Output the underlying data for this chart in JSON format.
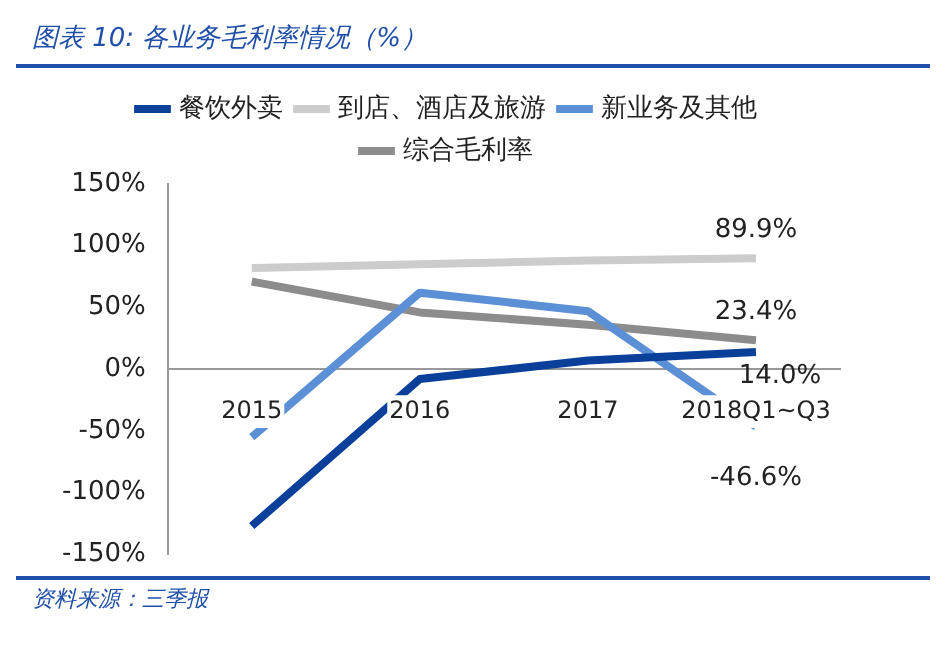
{
  "chart_data": {
    "type": "line",
    "title": "图表 10:  各业务毛利率情况（%）",
    "categories": [
      "2015",
      "2016",
      "2017",
      "2018Q1~Q3"
    ],
    "series": [
      {
        "name": "餐饮外卖",
        "color": "#0a3f9a",
        "values": [
          -127,
          -8,
          7,
          14.0
        ],
        "value_labels": [
          null,
          null,
          null,
          "14.0%"
        ]
      },
      {
        "name": "到店、酒店及旅游",
        "color": "#cccccc",
        "values": [
          82,
          85,
          88,
          89.9
        ],
        "value_labels": [
          null,
          null,
          null,
          "89.9%"
        ]
      },
      {
        "name": "新业务及其他",
        "color": "#5b8fd6",
        "values": [
          -55,
          62,
          47,
          -46.6
        ],
        "value_labels": [
          null,
          null,
          null,
          "-46.6%"
        ]
      },
      {
        "name": "综合毛利率",
        "color": "#8c8c8c",
        "values": [
          71,
          46,
          36,
          23.4
        ],
        "value_labels": [
          null,
          null,
          null,
          "23.4%"
        ]
      }
    ],
    "ylim": [
      -150,
      150
    ],
    "yticks": [
      {
        "value": -150,
        "label": "-150%"
      },
      {
        "value": -100,
        "label": "-100%"
      },
      {
        "value": -50,
        "label": "-50%"
      },
      {
        "value": 0,
        "label": "0%"
      },
      {
        "value": 50,
        "label": "50%"
      },
      {
        "value": 100,
        "label": "100%"
      },
      {
        "value": 150,
        "label": "150%"
      }
    ],
    "grid": false,
    "legend": "top",
    "marker": "none",
    "line_style": "solid",
    "annotations": [
      "资料来源：三季报"
    ]
  }
}
